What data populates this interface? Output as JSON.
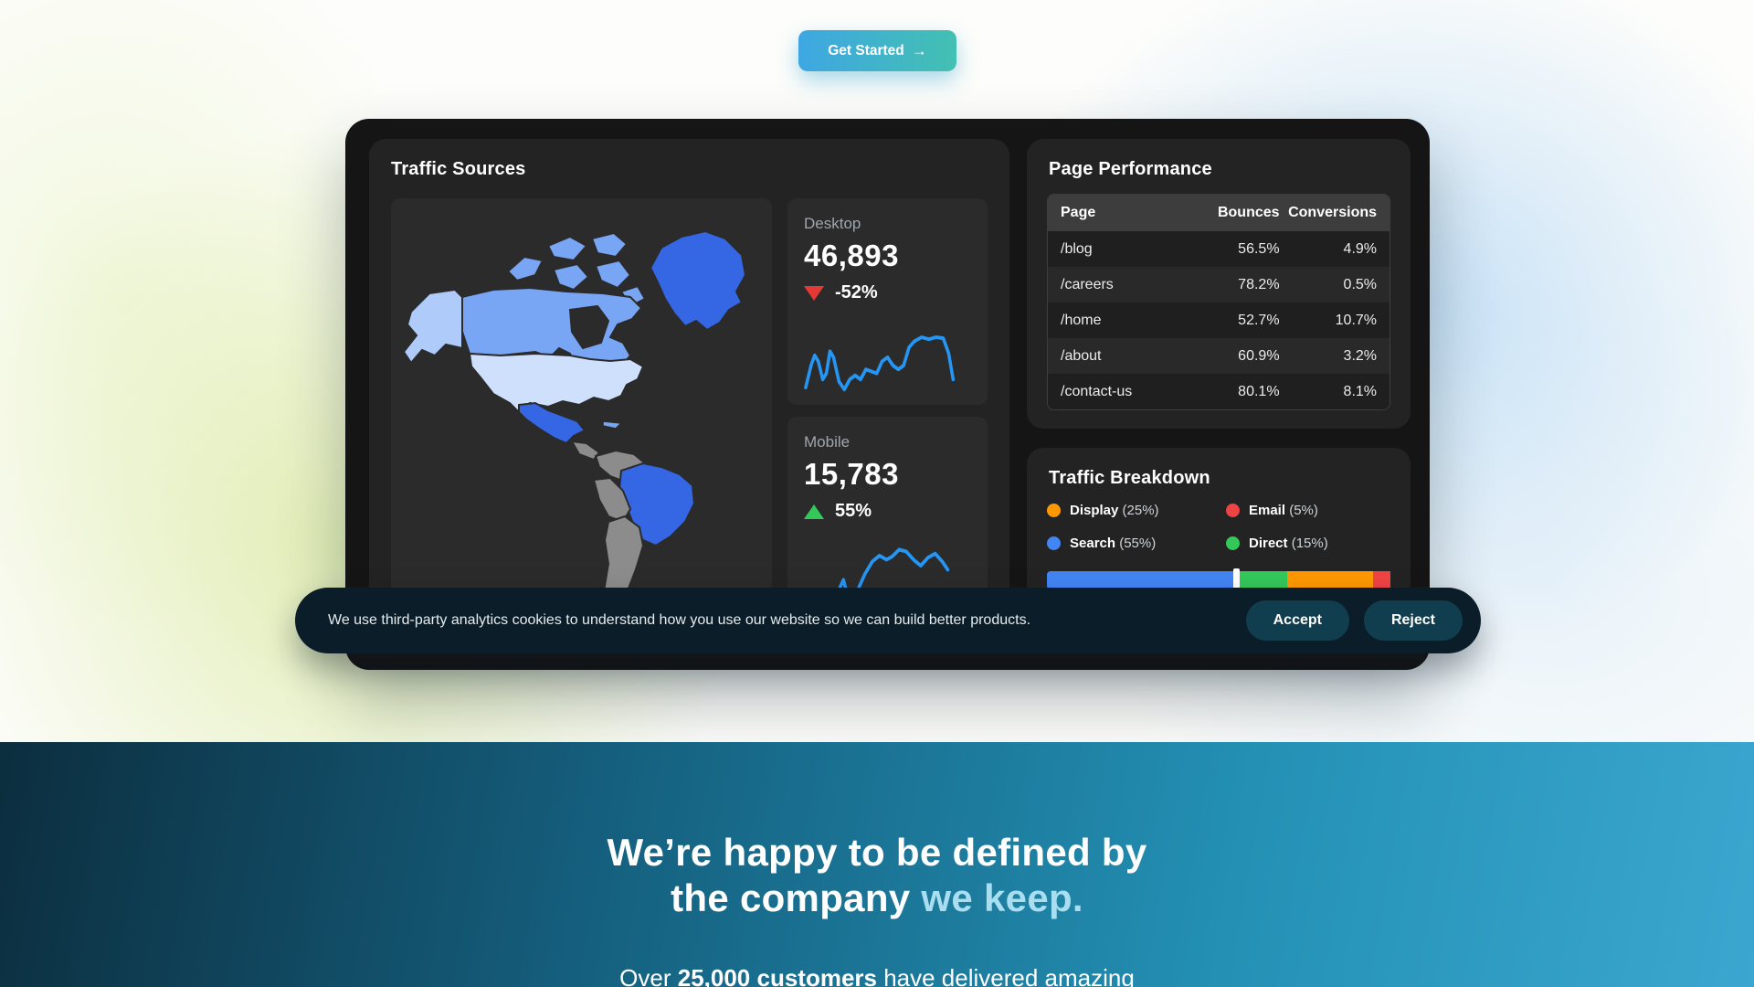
{
  "palette": {
    "map-strong": "#3566e3",
    "map-medium": "#79a5f5",
    "map-light": "#aecbfa",
    "map-lighter": "#cfe0fc",
    "map-gray": "#8c8c8c",
    "spark": "#2596f3",
    "up": "#34c85a",
    "down": "#e53935",
    "dot-orange": "#ff9800",
    "dot-red": "#ef4444",
    "dot-blue": "#4285f4",
    "dot-green": "#34c85a",
    "cta-left": "#3ea7e2",
    "cta-right": "#43c0b2",
    "banner-bg": "#0a1d28",
    "banner-btn": "#113e4e",
    "highlight": "#a9def1"
  },
  "hero": {
    "cta_label": "Get Started",
    "cta_arrow": "→"
  },
  "dashboard": {
    "traffic_sources": {
      "title": "Traffic Sources",
      "map": {
        "highlighted_regions": [
          "Greenland",
          "Canada",
          "Alaska",
          "United States",
          "Mexico",
          "Brazil"
        ],
        "muted_regions": [
          "Central America",
          "Andean South America",
          "Southern South America"
        ]
      },
      "stats": [
        {
          "label": "Desktop",
          "value": "46,893",
          "delta": "-52%",
          "direction": "down"
        },
        {
          "label": "Mobile",
          "value": "15,783",
          "delta": "55%",
          "direction": "up"
        }
      ]
    },
    "page_performance": {
      "title": "Page Performance",
      "columns": [
        "Page",
        "Bounces",
        "Conversions"
      ],
      "rows": [
        [
          "/blog",
          "56.5%",
          "4.9%"
        ],
        [
          "/careers",
          "78.2%",
          "0.5%"
        ],
        [
          "/home",
          "52.7%",
          "10.7%"
        ],
        [
          "/about",
          "60.9%",
          "3.2%"
        ],
        [
          "/contact-us",
          "80.1%",
          "8.1%"
        ]
      ]
    },
    "traffic_breakdown": {
      "title": "Traffic Breakdown",
      "legend": [
        {
          "name": "Display",
          "pct_label": "(25%)",
          "color": "#ff9800"
        },
        {
          "name": "Email",
          "pct_label": "(5%)",
          "color": "#ef4444"
        },
        {
          "name": "Search",
          "pct_label": "(55%)",
          "color": "#4285f4"
        },
        {
          "name": "Direct",
          "pct_label": "(15%)",
          "color": "#34c85a"
        }
      ],
      "bar_segments": [
        {
          "name": "Search",
          "value": 55,
          "color": "#4285f4"
        },
        {
          "name": "Direct",
          "value": 15,
          "color": "#34c85a"
        },
        {
          "name": "Display",
          "value": 25,
          "color": "#ff9800"
        },
        {
          "name": "Email",
          "value": 5,
          "color": "#ef4444"
        }
      ]
    }
  },
  "cookie_banner": {
    "message": "We use third-party analytics cookies to understand how you use our website so we can build better products.",
    "accept_label": "Accept",
    "reject_label": "Reject"
  },
  "bottom": {
    "heading_line1": "We’re happy to be defined by",
    "heading_line2_plain": "the company",
    "heading_line2_highlight": " we keep.",
    "sub_prefix": "Over ",
    "sub_bold": "25,000 customers",
    "sub_suffix": " have delivered amazing"
  }
}
